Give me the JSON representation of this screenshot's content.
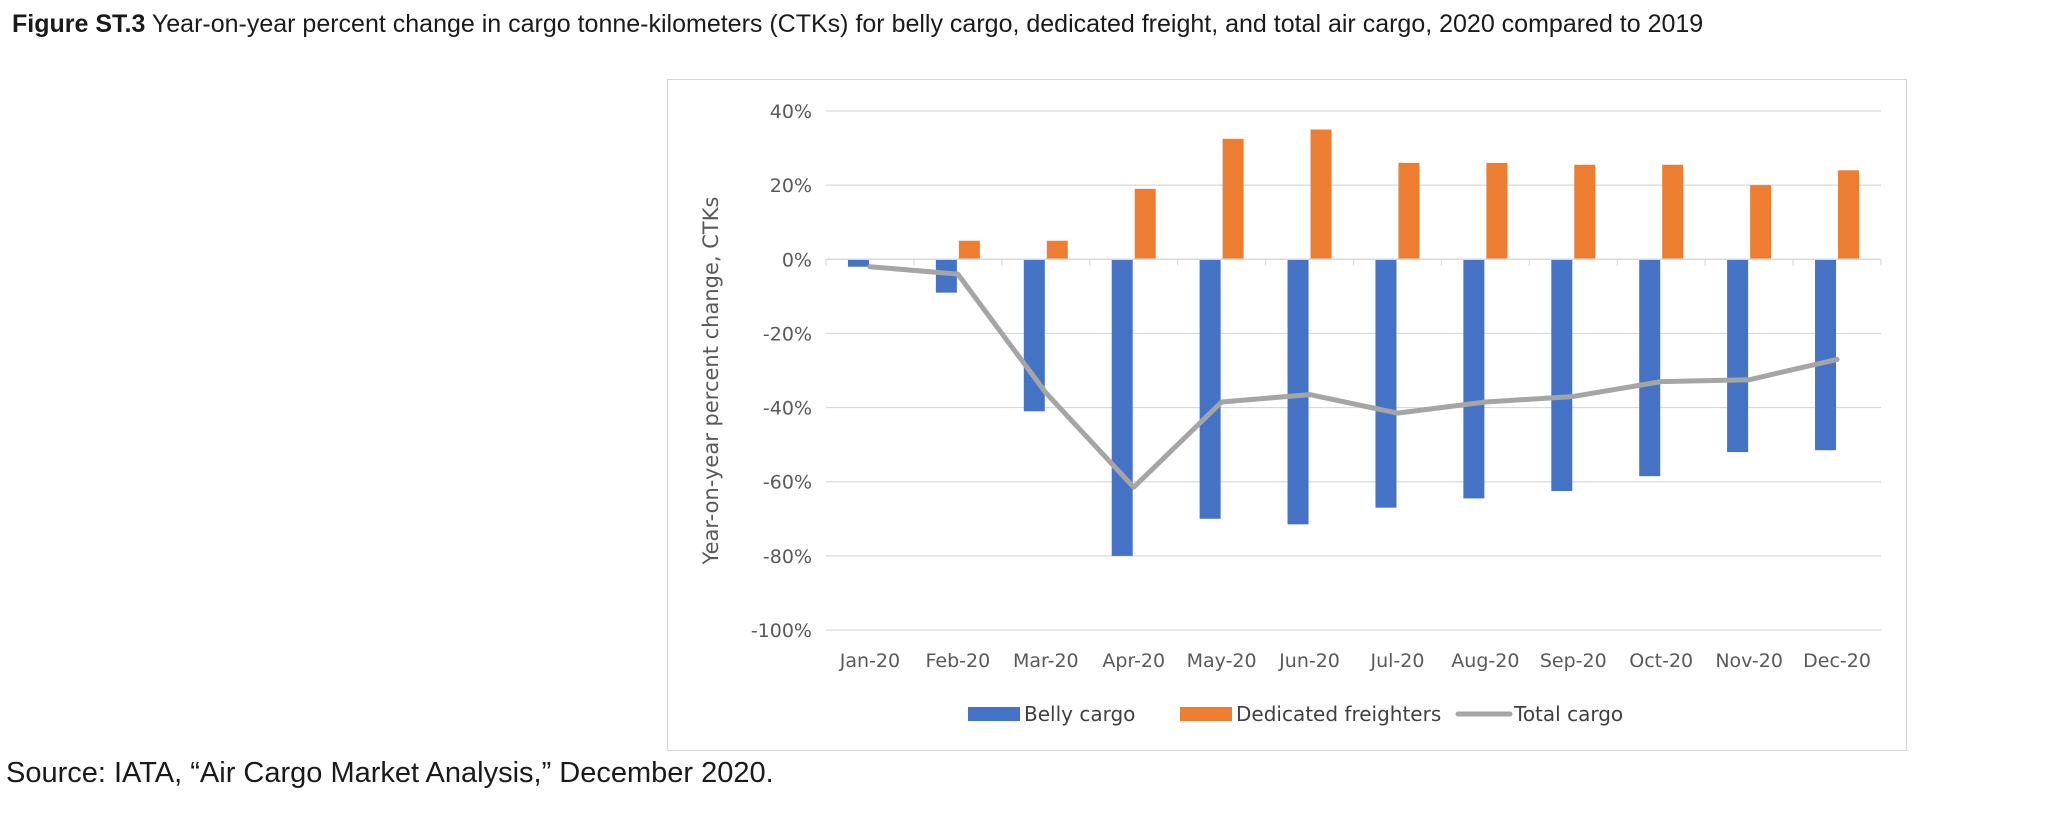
{
  "caption": {
    "figure_number": "Figure ST.3",
    "text": "Year-on-year percent change in cargo tonne-kilometers (CTKs) for belly cargo, dedicated freight, and total air cargo, 2020 compared to 2019"
  },
  "source": "Source: IATA, “Air Cargo Market Analysis,” December 2020.",
  "chart_data": {
    "type": "bar",
    "title": "",
    "xlabel": "",
    "ylabel": "Year-on-year percent change, CTKs",
    "categories": [
      "Jan-20",
      "Feb-20",
      "Mar-20",
      "Apr-20",
      "May-20",
      "Jun-20",
      "Jul-20",
      "Aug-20",
      "Sep-20",
      "Oct-20",
      "Nov-20",
      "Dec-20"
    ],
    "ylim": [
      -100,
      40
    ],
    "y_ticks": [
      40,
      20,
      0,
      -20,
      -40,
      -60,
      -80,
      -100
    ],
    "y_tick_labels": [
      "40%",
      "20%",
      "0%",
      "-20%",
      "-40%",
      "-60%",
      "-80%",
      "-100%"
    ],
    "grid": true,
    "legend_position": "bottom",
    "series": [
      {
        "name": "Belly cargo",
        "kind": "bar",
        "color": "#4472C4",
        "values": [
          -2,
          -9,
          -41,
          -80,
          -70,
          -71.5,
          -67,
          -64.5,
          -62.5,
          -58.5,
          -52,
          -51.5
        ]
      },
      {
        "name": "Dedicated freighters",
        "kind": "bar",
        "color": "#ED7D31",
        "values": [
          0,
          5,
          5,
          19,
          32.5,
          35,
          26,
          26,
          25.5,
          25.5,
          20,
          24
        ]
      },
      {
        "name": "Total cargo",
        "kind": "line",
        "color": "#A5A5A5",
        "values": [
          -2,
          -4,
          -36,
          -61.5,
          -38.5,
          -36.5,
          -41.5,
          -38.5,
          -37,
          -33,
          -32.5,
          -27
        ]
      }
    ]
  }
}
